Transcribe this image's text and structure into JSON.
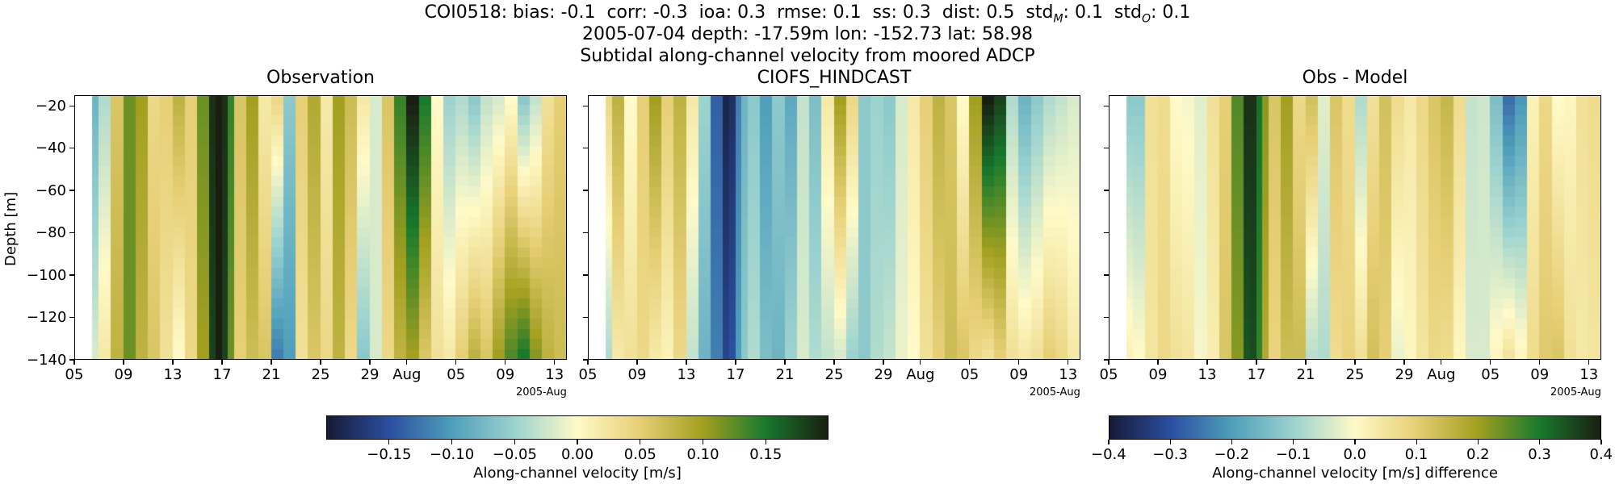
{
  "suptitle": {
    "line1_prefix": "COI0518: bias: -0.1  corr: -0.3  ioa: 0.3  rmse: 0.1  ss: 0.3  dist: 0.5  std",
    "line1_sub_m": "M",
    "line1_mid": ": 0.1  std",
    "line1_sub_o": "O",
    "line1_suffix": ": 0.1",
    "line2": "2005-07-04 depth: -17.59m lon: -152.73 lat: 58.98",
    "line3": "Subtidal along-channel velocity from moored ADCP"
  },
  "ylabel": "Depth [m]",
  "x_offset_label": "2005-Aug",
  "colormap_stops": [
    "#171a36",
    "#2b4fa0",
    "#4f9fbb",
    "#9cd3cf",
    "#fffac8",
    "#e7cf76",
    "#a3a020",
    "#187a2d",
    "#1a1e11"
  ],
  "chart_data": [
    {
      "type": "heatmap",
      "title": "Observation",
      "xlabel": "",
      "ylabel": "Depth [m]",
      "x_tick_labels": [
        "05",
        "09",
        "13",
        "17",
        "21",
        "25",
        "29",
        "Aug",
        "05",
        "09",
        "13"
      ],
      "x_tick_dates": [
        "2005-07-05",
        "2005-07-09",
        "2005-07-13",
        "2005-07-17",
        "2005-07-21",
        "2005-07-25",
        "2005-07-29",
        "2005-08-01",
        "2005-08-05",
        "2005-08-09",
        "2005-08-13"
      ],
      "x_range": [
        "2005-07-05",
        "2005-08-14"
      ],
      "y_ticks": [
        -20,
        -40,
        -60,
        -80,
        -100,
        -120,
        -140
      ],
      "ylim": [
        -140,
        -15
      ],
      "colorbar_range": [
        -0.2,
        0.2
      ],
      "time_days": [
        6.5,
        7,
        8,
        9,
        10,
        11,
        12,
        13,
        14,
        15,
        16,
        16.5,
        17,
        17.5,
        18,
        19,
        20,
        21,
        22,
        23,
        24,
        25,
        26,
        27,
        28,
        29,
        30,
        31,
        32,
        33,
        34,
        35,
        36,
        37,
        38,
        39,
        40,
        41,
        42,
        43,
        44
      ],
      "surface_values": [
        -0.08,
        -0.04,
        0.06,
        0.12,
        0.1,
        0.04,
        0.05,
        0.08,
        0.05,
        0.12,
        0.19,
        0.2,
        0.19,
        0.14,
        0.06,
        0.1,
        0.02,
        0.04,
        -0.06,
        0.05,
        0.09,
        0.02,
        0.1,
        0.07,
        0.02,
        -0.02,
        0.06,
        0.14,
        0.2,
        0.15,
        0.0,
        -0.05,
        -0.04,
        -0.06,
        -0.03,
        -0.02,
        0.0,
        -0.06,
        -0.03,
        0.03,
        0.05
      ],
      "bottom_values": [
        -0.02,
        0.02,
        0.08,
        0.12,
        0.08,
        0.06,
        0.03,
        0.0,
        0.04,
        0.1,
        0.18,
        0.2,
        0.18,
        0.12,
        0.05,
        0.07,
        0.06,
        -0.12,
        -0.1,
        0.03,
        0.06,
        0.04,
        0.08,
        0.04,
        -0.06,
        -0.02,
        0.04,
        0.08,
        0.1,
        0.06,
        0.03,
        0.02,
        0.05,
        0.08,
        0.06,
        0.1,
        0.13,
        0.15,
        0.11,
        0.08,
        0.07
      ]
    },
    {
      "type": "heatmap",
      "title": "CIOFS_HINDCAST",
      "xlabel": "",
      "ylabel": "",
      "x_tick_labels": [
        "05",
        "09",
        "13",
        "17",
        "21",
        "25",
        "29",
        "Aug",
        "05",
        "09",
        "13"
      ],
      "x_tick_dates": [
        "2005-07-05",
        "2005-07-09",
        "2005-07-13",
        "2005-07-17",
        "2005-07-21",
        "2005-07-25",
        "2005-07-29",
        "2005-08-01",
        "2005-08-05",
        "2005-08-09",
        "2005-08-13"
      ],
      "x_range": [
        "2005-07-05",
        "2005-08-14"
      ],
      "y_ticks": [
        -20,
        -40,
        -60,
        -80,
        -100,
        -120,
        -140
      ],
      "ylim": [
        -140,
        -15
      ],
      "colorbar_range": [
        -0.2,
        0.2
      ],
      "time_days": [
        6.5,
        7,
        8,
        9,
        10,
        11,
        12,
        13,
        14,
        15,
        16,
        16.5,
        17,
        17.5,
        18,
        19,
        20,
        21,
        22,
        23,
        24,
        25,
        26,
        27,
        28,
        29,
        30,
        31,
        32,
        33,
        34,
        35,
        36,
        37,
        38,
        39,
        40,
        41,
        42,
        43,
        44
      ],
      "surface_values": [
        0.04,
        0.08,
        0.0,
        0.05,
        0.1,
        0.05,
        0.08,
        0.02,
        -0.05,
        -0.14,
        -0.19,
        -0.18,
        -0.12,
        -0.08,
        -0.06,
        -0.1,
        -0.06,
        -0.09,
        -0.03,
        -0.07,
        0.02,
        0.1,
        0.04,
        -0.06,
        -0.05,
        -0.06,
        -0.02,
        0.02,
        0.05,
        0.08,
        0.06,
        0.0,
        0.1,
        0.2,
        0.18,
        -0.04,
        -0.08,
        -0.06,
        -0.04,
        -0.03,
        -0.02
      ],
      "bottom_values": [
        -0.04,
        0.02,
        0.03,
        0.04,
        0.02,
        0.01,
        0.04,
        -0.03,
        -0.08,
        -0.12,
        -0.16,
        -0.15,
        -0.1,
        -0.06,
        -0.04,
        -0.07,
        -0.08,
        -0.05,
        -0.02,
        -0.04,
        -0.03,
        -0.02,
        -0.05,
        -0.06,
        -0.04,
        -0.03,
        -0.01,
        0.0,
        0.03,
        0.05,
        0.07,
        0.06,
        0.04,
        0.03,
        0.05,
        0.03,
        0.02,
        0.03,
        0.05,
        0.04,
        0.02
      ]
    },
    {
      "type": "heatmap",
      "title": "Obs - Model",
      "xlabel": "",
      "ylabel": "",
      "x_tick_labels": [
        "05",
        "09",
        "13",
        "17",
        "21",
        "25",
        "29",
        "Aug",
        "05",
        "09",
        "13"
      ],
      "x_tick_dates": [
        "2005-07-05",
        "2005-07-09",
        "2005-07-13",
        "2005-07-17",
        "2005-07-21",
        "2005-07-25",
        "2005-07-29",
        "2005-08-01",
        "2005-08-05",
        "2005-08-09",
        "2005-08-13"
      ],
      "x_range": [
        "2005-07-05",
        "2005-08-14"
      ],
      "y_ticks": [
        -20,
        -40,
        -60,
        -80,
        -100,
        -120,
        -140
      ],
      "ylim": [
        -140,
        -15
      ],
      "colorbar_range": [
        -0.4,
        0.4
      ],
      "time_days": [
        6.5,
        7,
        8,
        9,
        10,
        11,
        12,
        13,
        14,
        15,
        16,
        16.5,
        17,
        17.5,
        18,
        19,
        20,
        21,
        22,
        23,
        24,
        25,
        26,
        27,
        28,
        29,
        30,
        31,
        32,
        33,
        34,
        35,
        36,
        37,
        38,
        39,
        40,
        41,
        42,
        43,
        44
      ],
      "surface_values": [
        -0.12,
        -0.12,
        0.06,
        0.07,
        0.0,
        -0.01,
        -0.03,
        0.06,
        0.1,
        0.26,
        0.38,
        0.38,
        0.31,
        0.22,
        0.12,
        0.2,
        0.08,
        0.13,
        -0.03,
        0.12,
        0.07,
        -0.08,
        0.06,
        0.13,
        0.07,
        0.04,
        0.08,
        0.12,
        0.15,
        0.07,
        -0.06,
        -0.05,
        -0.14,
        -0.26,
        -0.21,
        0.02,
        0.08,
        0.0,
        0.01,
        0.06,
        0.07
      ],
      "bottom_values": [
        0.02,
        0.0,
        0.05,
        0.08,
        0.06,
        0.05,
        -0.01,
        0.03,
        0.12,
        0.22,
        0.34,
        0.35,
        0.28,
        0.18,
        0.09,
        0.14,
        0.14,
        -0.07,
        -0.08,
        0.07,
        0.09,
        0.06,
        0.13,
        0.1,
        -0.02,
        0.01,
        0.05,
        0.08,
        0.07,
        0.01,
        -0.04,
        -0.04,
        0.01,
        0.05,
        0.01,
        0.07,
        0.11,
        0.12,
        0.06,
        0.04,
        0.05
      ]
    }
  ],
  "colorbars": [
    {
      "label": "Along-channel velocity [m/s]",
      "range": [
        -0.2,
        0.2
      ],
      "ticks": [
        -0.15,
        -0.1,
        -0.05,
        0.0,
        0.05,
        0.1,
        0.15
      ],
      "tick_labels": [
        "−0.15",
        "−0.10",
        "−0.05",
        "0.00",
        "0.05",
        "0.10",
        "0.15"
      ]
    },
    {
      "label": "Along-channel velocity [m/s] difference",
      "range": [
        -0.4,
        0.4
      ],
      "ticks": [
        -0.4,
        -0.3,
        -0.2,
        -0.1,
        0.0,
        0.1,
        0.2,
        0.3,
        0.4
      ],
      "tick_labels": [
        "−0.4",
        "−0.3",
        "−0.2",
        "−0.1",
        "0.0",
        "0.1",
        "0.2",
        "0.3",
        "0.4"
      ]
    }
  ]
}
